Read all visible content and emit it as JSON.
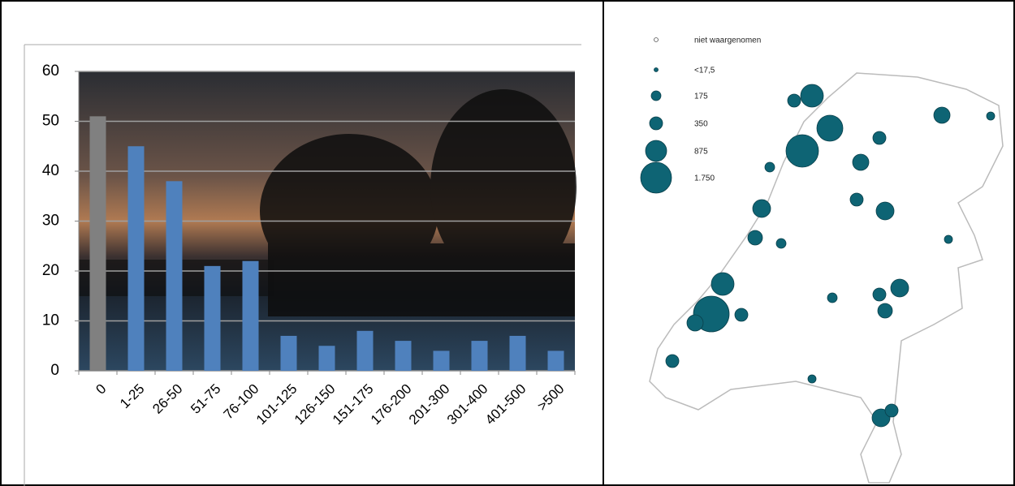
{
  "chart_data": {
    "type": "bar",
    "categories": [
      "0",
      "1-25",
      "26-50",
      "51-75",
      "76-100",
      "101-125",
      "126-150",
      "151-175",
      "176-200",
      "201-300",
      "301-400",
      "401-500",
      ">500"
    ],
    "values": [
      51,
      45,
      38,
      21,
      22,
      7,
      5,
      8,
      6,
      4,
      6,
      7,
      4
    ],
    "colors": [
      "#808080",
      "#4f81bd",
      "#4f81bd",
      "#4f81bd",
      "#4f81bd",
      "#4f81bd",
      "#4f81bd",
      "#4f81bd",
      "#4f81bd",
      "#4f81bd",
      "#4f81bd",
      "#4f81bd",
      "#4f81bd"
    ],
    "ylim": [
      0,
      60
    ],
    "yticks": [
      0,
      10,
      20,
      30,
      40,
      50,
      60
    ],
    "grid": true
  },
  "map": {
    "legend": [
      "niet waargenomen",
      "<17,5",
      "175",
      "350",
      "875",
      "1.750"
    ]
  }
}
